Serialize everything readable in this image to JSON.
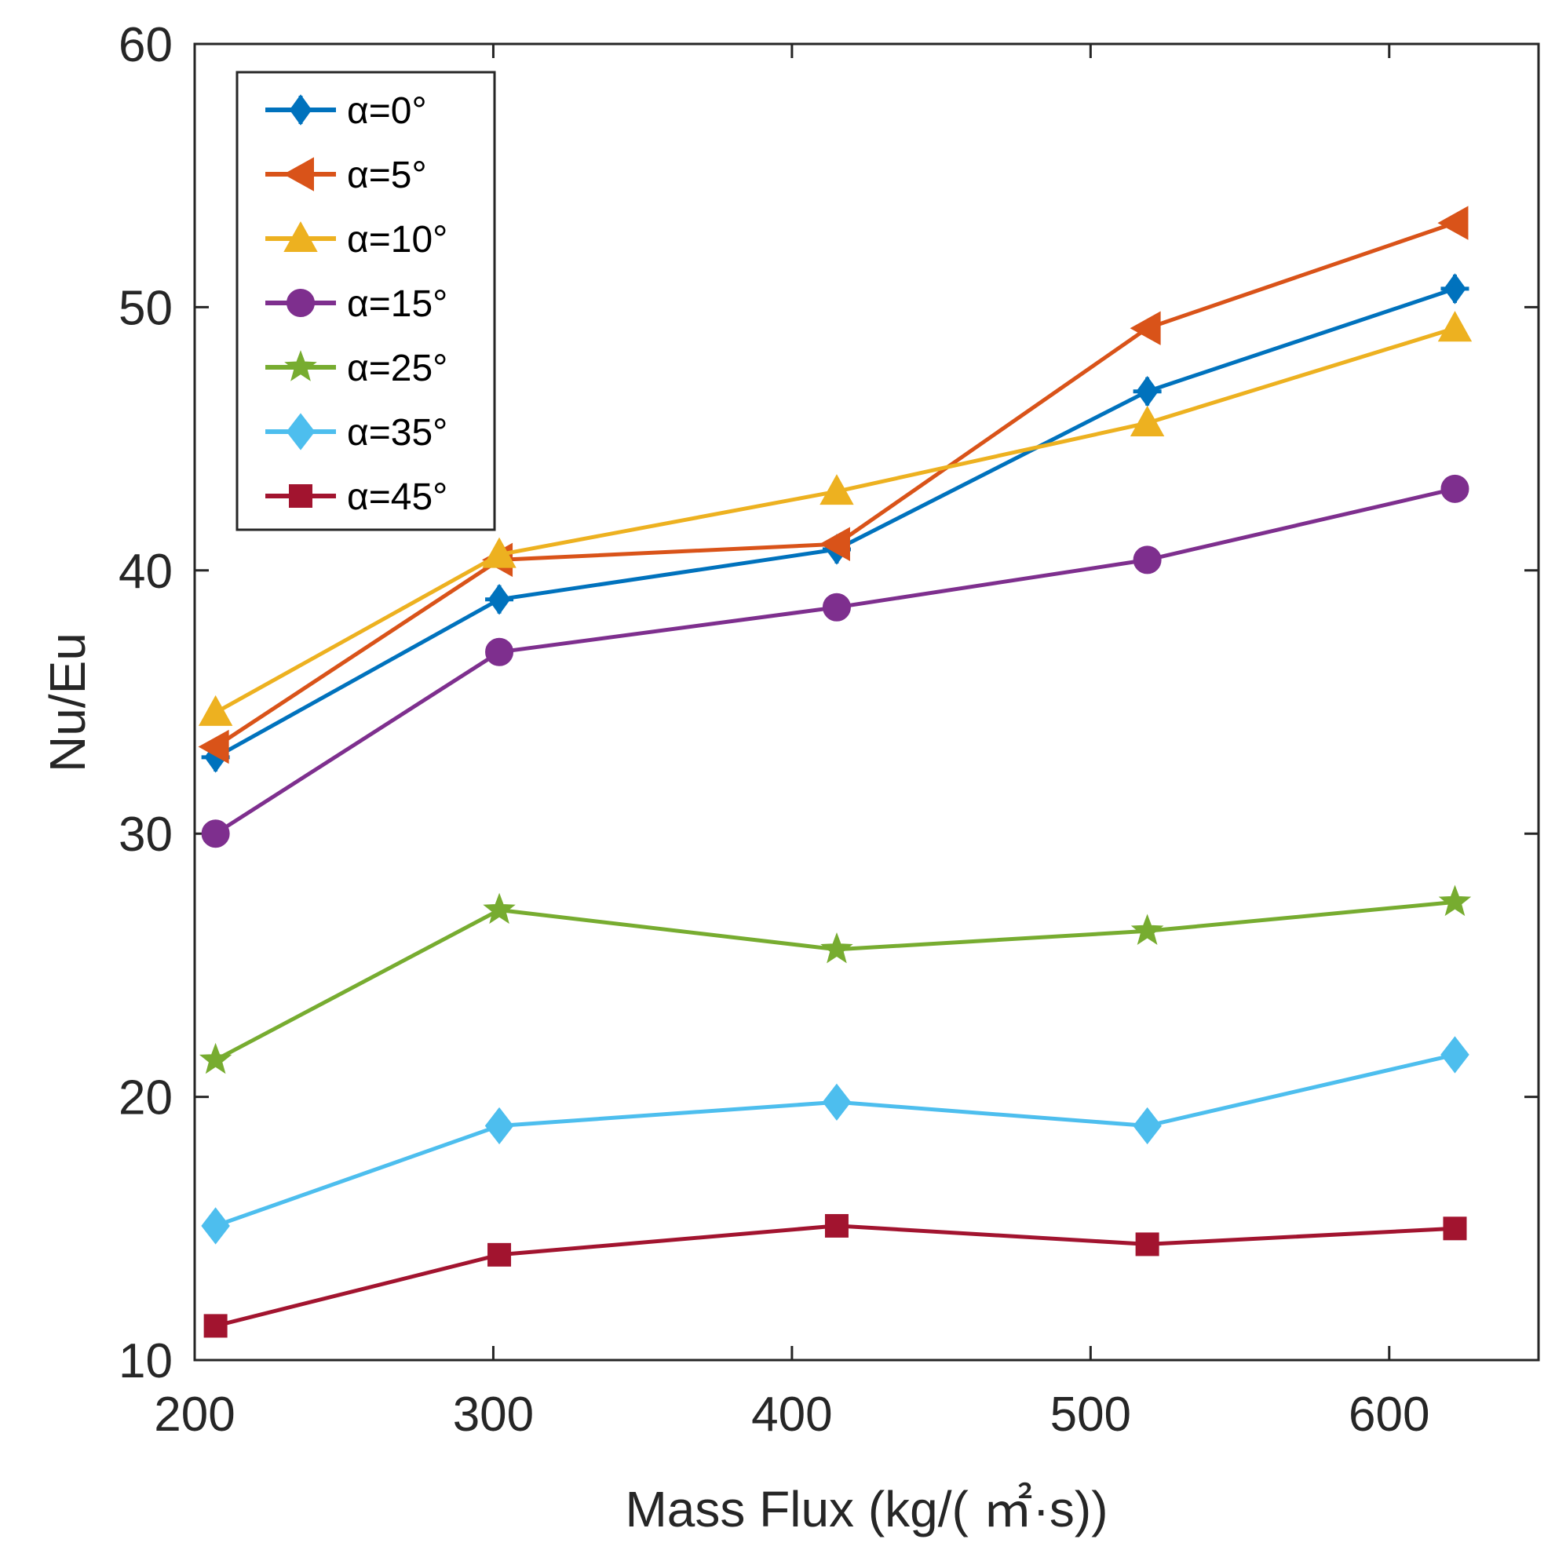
{
  "chart_data": {
    "type": "line",
    "title": "",
    "xlabel": "Mass Flux (kg/( ㎡·s))",
    "ylabel": "Nu/Eu",
    "xlim": [
      200,
      650
    ],
    "ylim": [
      10,
      60
    ],
    "xticks": [
      200,
      300,
      400,
      500,
      600
    ],
    "yticks": [
      10,
      20,
      30,
      40,
      50,
      60
    ],
    "grid": false,
    "legend_position": "top-left",
    "x": [
      207,
      302,
      415,
      519,
      622
    ],
    "series": [
      {
        "name": "α=0°",
        "color": "#0072BD",
        "marker": "asterisk-diamond",
        "values": [
          32.9,
          38.9,
          40.8,
          46.8,
          50.7
        ]
      },
      {
        "name": "α=5°",
        "color": "#D95319",
        "marker": "triangle-left",
        "values": [
          33.3,
          40.4,
          41.0,
          49.2,
          53.2
        ]
      },
      {
        "name": "α=10°",
        "color": "#EDB120",
        "marker": "triangle-up",
        "values": [
          34.6,
          40.6,
          43.0,
          45.6,
          49.2
        ]
      },
      {
        "name": "α=15°",
        "color": "#7E2F8E",
        "marker": "circle",
        "values": [
          30.0,
          36.9,
          38.6,
          40.4,
          43.1
        ]
      },
      {
        "name": "α=25°",
        "color": "#77AC30",
        "marker": "star",
        "values": [
          21.4,
          27.1,
          25.6,
          26.3,
          27.4
        ]
      },
      {
        "name": "α=35°",
        "color": "#4DBEEE",
        "marker": "diamond",
        "values": [
          15.1,
          18.9,
          19.8,
          18.9,
          21.6
        ]
      },
      {
        "name": "α=45°",
        "color": "#A2142F",
        "marker": "square",
        "values": [
          11.3,
          14.0,
          15.1,
          14.4,
          15.0
        ]
      }
    ]
  }
}
